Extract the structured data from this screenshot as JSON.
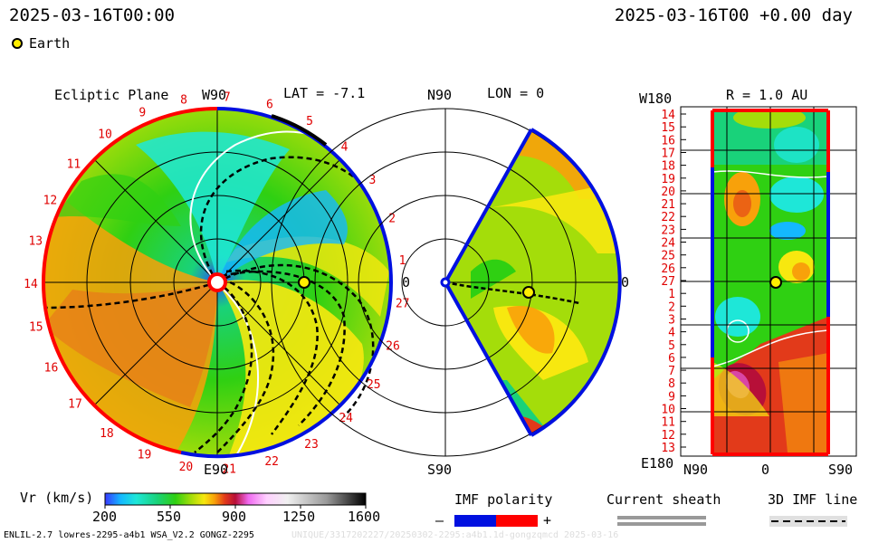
{
  "header": {
    "left_time": "2025-03-16T00:00",
    "right_time": "2025-03-16T00 +0.00 day"
  },
  "legend": {
    "earth_label": "Earth"
  },
  "panels": {
    "ecliptic": {
      "title": "Ecliptic Plane",
      "top_label": "W90",
      "bottom_label": "E90",
      "right_label": "0",
      "lat_label": "LAT = -7.1",
      "carrington_numbers": [
        "1",
        "2",
        "3",
        "4",
        "5",
        "6",
        "7",
        "8",
        "9",
        "10",
        "11",
        "12",
        "13",
        "14",
        "15",
        "16",
        "17",
        "18",
        "19",
        "20",
        "21",
        "22",
        "23",
        "24",
        "25",
        "26",
        "27"
      ]
    },
    "meridional": {
      "top_label": "N90",
      "bottom_label": "S90",
      "lon_label": "LON = 0",
      "right_label": "0"
    },
    "map": {
      "top_left": "W180",
      "title": "R = 1.0 AU",
      "bottom_left": "E180",
      "x_labels": [
        "N90",
        "0",
        "S90"
      ],
      "y_labels": [
        "14",
        "15",
        "16",
        "17",
        "18",
        "19",
        "20",
        "21",
        "22",
        "23",
        "24",
        "25",
        "26",
        "27",
        "1",
        "2",
        "3",
        "4",
        "5",
        "6",
        "7",
        "8",
        "9",
        "10",
        "11",
        "12",
        "13"
      ]
    }
  },
  "colorbar": {
    "label": "Vr (km/s)",
    "ticks": [
      "200",
      "550",
      "900",
      "1250",
      "1600"
    ]
  },
  "imf": {
    "label": "IMF polarity",
    "minus": "–",
    "plus": "+",
    "colors": {
      "negative": "#0010e0",
      "positive": "#ff0000"
    }
  },
  "sheath": {
    "label": "Current sheath"
  },
  "imf_line": {
    "label": "3D IMF line"
  },
  "footer": {
    "left": "ENLIL-2.7 lowres-2295-a4b1 WSA_V2.2 GONGZ-2295",
    "right": "UNIQUE/3317202227/20250302-2295:a4b1.1d-gongzqmcd 2025-03-16"
  },
  "chart_data": {
    "type": "heatmap",
    "quantity": "Vr (km/s)",
    "colorbar_range": [
      200,
      1600
    ],
    "earth": {
      "radius_au": 1.0,
      "longitude_deg": 0,
      "latitude_deg": -7.1
    },
    "palette": [
      "#3838ff",
      "#14b8ff",
      "#1ee7d8",
      "#19d27a",
      "#2fd012",
      "#a4dd0a",
      "#f7e80f",
      "#f8a10a",
      "#e23a1a",
      "#b70f38",
      "#f069f0",
      "#f0f0f0",
      "#9a9a9a",
      "#000000"
    ]
  }
}
